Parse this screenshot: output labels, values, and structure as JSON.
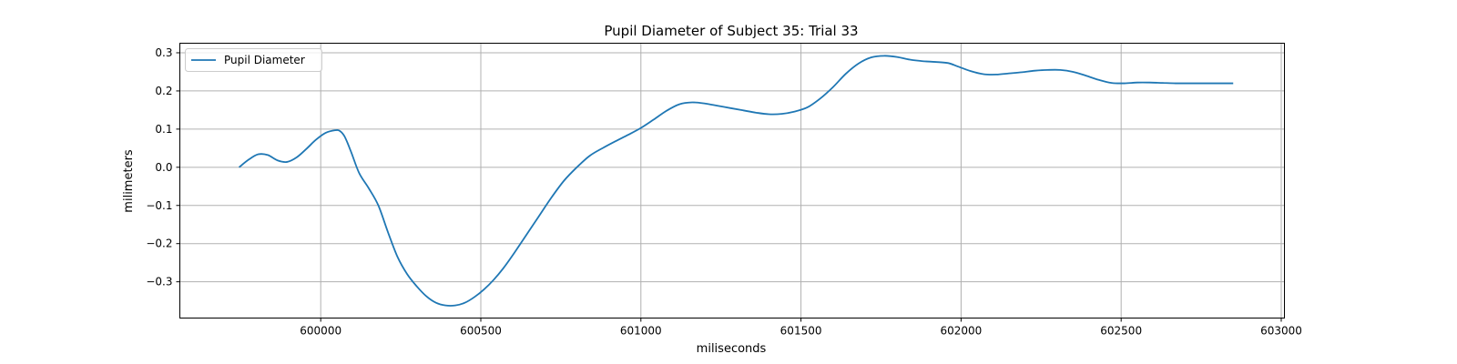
{
  "chart_data": {
    "type": "line",
    "title": "Pupil Diameter of Subject 35: Trial 33",
    "xlabel": "miliseconds",
    "ylabel": "milimeters",
    "xlim": [
      599560,
      603010
    ],
    "ylim": [
      -0.395,
      0.325
    ],
    "xticks": [
      600000,
      600500,
      601000,
      601500,
      602000,
      602500,
      603000
    ],
    "xtick_labels": [
      "600000",
      "600500",
      "601000",
      "601500",
      "602000",
      "602500",
      "603000"
    ],
    "yticks": [
      -0.3,
      -0.2,
      -0.1,
      0.0,
      0.1,
      0.2,
      0.3
    ],
    "ytick_labels": [
      "−0.3",
      "−0.2",
      "−0.1",
      "0.0",
      "0.1",
      "0.2",
      "0.3"
    ],
    "grid": true,
    "legend_position": "upper-left",
    "series": [
      {
        "name": "Pupil Diameter",
        "color": "#1f77b4",
        "x": [
          599745,
          599775,
          599805,
          599835,
          599865,
          599895,
          599925,
          599955,
          599985,
          600015,
          600045,
          600060,
          600075,
          600095,
          600120,
          600150,
          600180,
          600210,
          600240,
          600270,
          600300,
          600330,
          600360,
          600390,
          600420,
          600450,
          600480,
          600510,
          600540,
          600570,
          600600,
          600640,
          600680,
          600720,
          600760,
          600800,
          600840,
          600880,
          600920,
          600960,
          601000,
          601040,
          601080,
          601120,
          601160,
          601200,
          601240,
          601280,
          601320,
          601360,
          601400,
          601440,
          601480,
          601520,
          601560,
          601600,
          601640,
          601680,
          601720,
          601760,
          601800,
          601840,
          601880,
          601920,
          601960,
          601990,
          602030,
          602070,
          602110,
          602150,
          602190,
          602230,
          602270,
          602310,
          602350,
          602390,
          602430,
          602470,
          602510,
          602550,
          602590,
          602630,
          602670,
          602710,
          602750,
          602790,
          602820,
          602850
        ],
        "y": [
          0.0,
          0.02,
          0.034,
          0.032,
          0.018,
          0.014,
          0.026,
          0.048,
          0.072,
          0.09,
          0.097,
          0.095,
          0.08,
          0.04,
          -0.015,
          -0.055,
          -0.1,
          -0.17,
          -0.235,
          -0.28,
          -0.312,
          -0.338,
          -0.355,
          -0.362,
          -0.362,
          -0.355,
          -0.34,
          -0.32,
          -0.295,
          -0.265,
          -0.23,
          -0.18,
          -0.13,
          -0.08,
          -0.035,
          0.0,
          0.03,
          0.05,
          0.068,
          0.085,
          0.103,
          0.125,
          0.148,
          0.165,
          0.17,
          0.167,
          0.161,
          0.155,
          0.149,
          0.143,
          0.139,
          0.14,
          0.146,
          0.157,
          0.18,
          0.21,
          0.245,
          0.272,
          0.288,
          0.292,
          0.289,
          0.282,
          0.278,
          0.276,
          0.273,
          0.264,
          0.252,
          0.244,
          0.243,
          0.246,
          0.249,
          0.253,
          0.255,
          0.255,
          0.25,
          0.24,
          0.229,
          0.221,
          0.22,
          0.222,
          0.222,
          0.221,
          0.22,
          0.22,
          0.22,
          0.22,
          0.22,
          0.22
        ]
      }
    ]
  }
}
